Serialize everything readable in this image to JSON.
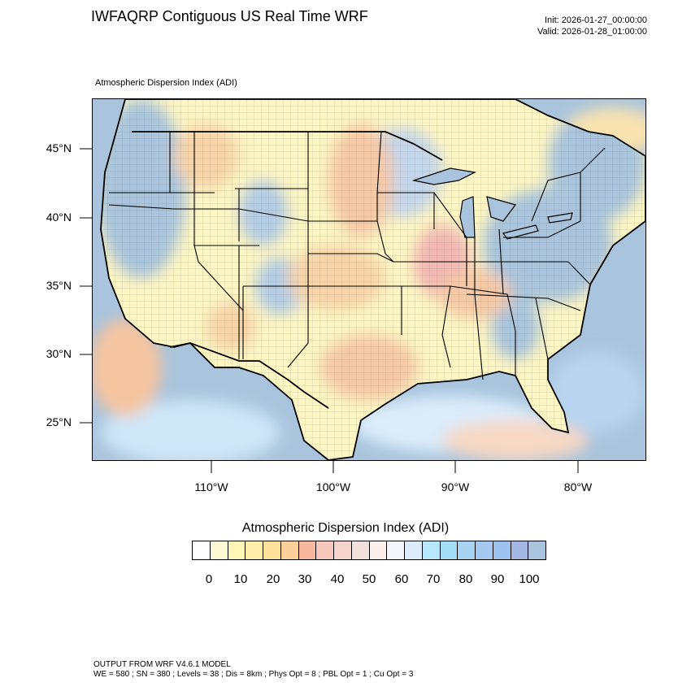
{
  "header": {
    "title": "IWFAQRP Contiguous US Real Time WRF",
    "init": "Init: 2026-01-27_00:00:00",
    "valid": "Valid: 2026-01-28_01:00:00"
  },
  "map": {
    "subtitle": "Atmospheric Dispersion Index   (ADI)",
    "lat_labels": [
      "45°N",
      "40°N",
      "35°N",
      "30°N",
      "25°N"
    ],
    "lon_labels": [
      "110°W",
      "100°W",
      "90°W",
      "80°W"
    ],
    "colors": {
      "ocean": "#a9c4dc",
      "land_low": "#fdf5c2",
      "land_mid": "#f6c9a6",
      "land_high": "#a9c4dc",
      "boundary": "#000000"
    }
  },
  "legend": {
    "title": "Atmospheric Dispersion Index  (ADI)",
    "labels": [
      "0",
      "10",
      "20",
      "30",
      "40",
      "50",
      "60",
      "70",
      "80",
      "90",
      "100"
    ],
    "colors": [
      "#ffffff",
      "#fffad6",
      "#fff6b8",
      "#fdecaa",
      "#fde09a",
      "#fcd09a",
      "#f8b8a0",
      "#f6c8bc",
      "#f4d4cc",
      "#f2e0dc",
      "#fdf0ec",
      "#f4f6fc",
      "#dcecfc",
      "#b8e6fa",
      "#a4ddf6",
      "#a8d4f2",
      "#a4c8f0",
      "#9ec2f0",
      "#a4b6e2",
      "#a9c4dc"
    ]
  },
  "footer": {
    "line1": "OUTPUT FROM WRF V4.6.1 MODEL",
    "line2": "WE = 580 ; SN = 380 ; Levels = 38 ; Dis = 8km ; Phys Opt = 8 ; PBL Opt = 1 ; Cu Opt = 3"
  }
}
